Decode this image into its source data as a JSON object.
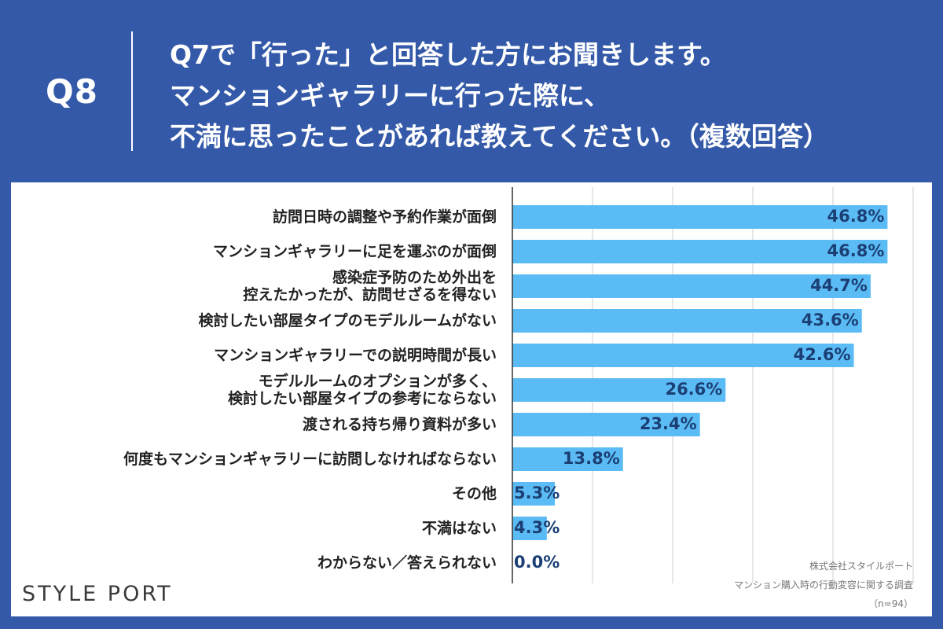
{
  "header": {
    "q_label": "Q8",
    "question_lines": [
      "Q7で「行った」と回答した方にお聞きします。",
      "マンションギャラリーに行った際に、",
      "不満に思ったことがあれば教えてください。（複数回答）"
    ]
  },
  "brand": {
    "logo_text": "STYLE PORT"
  },
  "source": {
    "company": "株式会社スタイルポート",
    "survey": "マンション購入時の行動変容に関する調査",
    "sample": "（n=94）"
  },
  "colors": {
    "header_bg": "#3359a8",
    "bar": "#5bbcf5",
    "value_text": "#1b3f74",
    "grid": "#cfcfcf"
  },
  "chart_data": {
    "type": "bar",
    "orientation": "horizontal",
    "categories": [
      "訪問日時の調整や予約作業が面倒",
      "マンションギャラリーに足を運ぶのが面倒",
      "感染症予防のため外出を\n控えたかったが、訪問せざるを得ない",
      "検討したい部屋タイプのモデルルームがない",
      "マンションギャラリーでの説明時間が長い",
      "モデルルームのオプションが多く、\n検討したい部屋タイプの参考にならない",
      "渡される持ち帰り資料が多い",
      "何度もマンションギャラリーに訪問しなければならない",
      "その他",
      "不満はない",
      "わからない／答えられない"
    ],
    "values": [
      46.8,
      46.8,
      44.7,
      43.6,
      42.6,
      26.6,
      23.4,
      13.8,
      5.3,
      4.3,
      0.0
    ],
    "value_labels": [
      "46.8%",
      "46.8%",
      "44.7%",
      "43.6%",
      "42.6%",
      "26.6%",
      "23.4%",
      "13.8%",
      "5.3%",
      "4.3%",
      "0.0%"
    ],
    "xlim": [
      0,
      50
    ],
    "grid": true,
    "legend": "none"
  }
}
